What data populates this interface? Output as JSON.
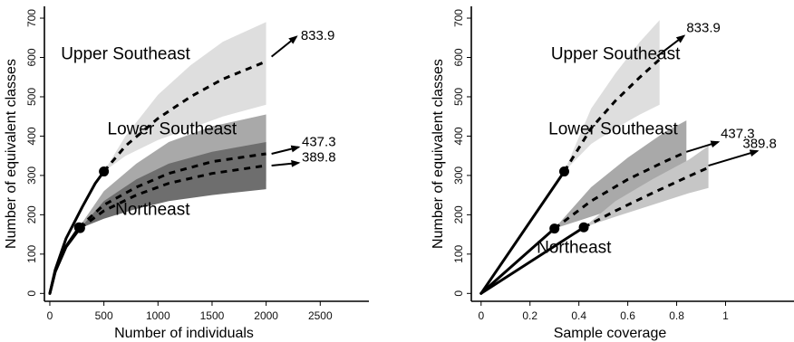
{
  "chart_data": [
    {
      "type": "line",
      "xlabel": "Number of individuals",
      "ylabel": "Number of equivalent classes",
      "xlim": [
        -50,
        2950
      ],
      "ylim": [
        -20,
        730
      ],
      "xticks": [
        0,
        500,
        1000,
        1500,
        2000,
        2500
      ],
      "yticks": [
        0,
        100,
        200,
        300,
        400,
        500,
        600,
        700
      ],
      "grid": false,
      "colors": {
        "band_upper": "#dedede",
        "band_lower": "#a9a9a9",
        "band_northeast": "#6e6e6e",
        "line": "#000000"
      },
      "series": [
        {
          "name": "Upper Southeast",
          "label_at": [
            700,
            595
          ],
          "end_label": "833.9",
          "arrow_from": [
            2050,
            602
          ],
          "arrow_to": [
            2280,
            653
          ],
          "end_label_at": [
            2320,
            645
          ],
          "observed": {
            "x": [
              0,
              50,
              150,
              300,
              420,
              500
            ],
            "y": [
              0,
              60,
              140,
              220,
              280,
              310
            ]
          },
          "extrapolated": {
            "x": [
              500,
              700,
              1000,
              1300,
              1600,
              2000
            ],
            "y": [
              310,
              375,
              445,
              500,
              545,
              590
            ]
          },
          "band": {
            "x": [
              500,
              700,
              1000,
              1300,
              1600,
              2000
            ],
            "lower": [
              310,
              350,
              390,
              420,
              450,
              480
            ],
            "upper": [
              310,
              400,
              505,
              580,
              640,
              690
            ]
          }
        },
        {
          "name": "Lower Southeast",
          "label_at": [
            1130,
            405
          ],
          "end_label": "437.3",
          "arrow_from": [
            2050,
            355
          ],
          "arrow_to": [
            2300,
            372
          ],
          "end_label_at": [
            2330,
            375
          ],
          "observed": {
            "x": [
              0,
              50,
              150,
              270
            ],
            "y": [
              0,
              55,
              120,
              168
            ]
          },
          "extrapolated": {
            "x": [
              270,
              500,
              800,
              1100,
              1500,
              2000
            ],
            "y": [
              168,
              225,
              270,
              305,
              335,
              355
            ]
          },
          "band": {
            "x": [
              270,
              500,
              800,
              1100,
              1500,
              2000
            ],
            "lower": [
              168,
              200,
              230,
              250,
              270,
              285
            ],
            "upper": [
              168,
              260,
              330,
              385,
              425,
              455
            ]
          }
        },
        {
          "name": "Northeast",
          "label_at": [
            950,
            200
          ],
          "end_label": "389.8",
          "arrow_from": [
            2050,
            325
          ],
          "arrow_to": [
            2300,
            332
          ],
          "end_label_at": [
            2330,
            335
          ],
          "observed": {
            "x": [
              0,
              50,
              150,
              280
            ],
            "y": [
              0,
              55,
              118,
              166
            ]
          },
          "extrapolated": {
            "x": [
              280,
              500,
              800,
              1100,
              1500,
              2000
            ],
            "y": [
              166,
              210,
              250,
              280,
              305,
              325
            ]
          },
          "band": {
            "x": [
              280,
              500,
              800,
              1100,
              1500,
              2000
            ],
            "lower": [
              166,
              190,
              215,
              235,
              250,
              265
            ],
            "upper": [
              166,
              235,
              290,
              330,
              360,
              385
            ]
          }
        }
      ]
    },
    {
      "type": "line",
      "xlabel": "Sample coverage",
      "ylabel": "Number of equivalent classes",
      "xlim": [
        -0.04,
        1.28
      ],
      "ylim": [
        -20,
        730
      ],
      "xticks": [
        0,
        0.2,
        0.4,
        0.6,
        0.8,
        1
      ],
      "yticks": [
        0,
        100,
        200,
        300,
        400,
        500,
        600,
        700
      ],
      "grid": false,
      "colors": {
        "band_upper": "#dedede",
        "band_lower": "#a9a9a9",
        "band_northeast": "#c6c6c6",
        "line": "#000000"
      },
      "series": [
        {
          "name": "Upper Southeast",
          "label_at": [
            0.55,
            595
          ],
          "end_label": "833.9",
          "arrow_from": [
            0.72,
            603
          ],
          "arrow_to": [
            0.83,
            655
          ],
          "end_label_at": [
            0.84,
            665
          ],
          "observed": {
            "x": [
              0,
              0.34
            ],
            "y": [
              0,
              310
            ]
          },
          "extrapolated": {
            "x": [
              0.34,
              0.45,
              0.55,
              0.65,
              0.73
            ],
            "y": [
              310,
              420,
              490,
              550,
              595
            ]
          },
          "band": {
            "x": [
              0.34,
              0.45,
              0.55,
              0.65,
              0.73
            ],
            "lower": [
              310,
              380,
              420,
              455,
              480
            ],
            "upper": [
              310,
              470,
              560,
              640,
              695
            ]
          }
        },
        {
          "name": "Lower Southeast",
          "label_at": [
            0.54,
            405
          ],
          "end_label": "437.3",
          "arrow_from": [
            0.84,
            360
          ],
          "arrow_to": [
            0.97,
            385
          ],
          "end_label_at": [
            0.98,
            395
          ],
          "observed": {
            "x": [
              0,
              0.3
            ],
            "y": [
              0,
              165
            ]
          },
          "extrapolated": {
            "x": [
              0.3,
              0.45,
              0.6,
              0.75,
              0.84
            ],
            "y": [
              165,
              235,
              290,
              335,
              360
            ]
          },
          "band": {
            "x": [
              0.3,
              0.45,
              0.6,
              0.75,
              0.84
            ],
            "lower": [
              165,
              195,
              225,
              250,
              265
            ],
            "upper": [
              165,
              270,
              345,
              410,
              440
            ]
          }
        },
        {
          "name": "Northeast",
          "label_at": [
            0.38,
            103
          ],
          "end_label": "389.8",
          "arrow_from": [
            0.93,
            325
          ],
          "arrow_to": [
            1.13,
            362
          ],
          "end_label_at": [
            1.07,
            370
          ],
          "observed": {
            "x": [
              0,
              0.42
            ],
            "y": [
              0,
              168
            ]
          },
          "extrapolated": {
            "x": [
              0.42,
              0.55,
              0.7,
              0.85,
              0.93
            ],
            "y": [
              168,
              210,
              255,
              298,
              320
            ]
          },
          "band": {
            "x": [
              0.42,
              0.55,
              0.7,
              0.85,
              0.93
            ],
            "lower": [
              168,
              195,
              225,
              255,
              268
            ],
            "upper": [
              168,
              235,
              290,
              340,
              375
            ]
          }
        }
      ]
    }
  ]
}
